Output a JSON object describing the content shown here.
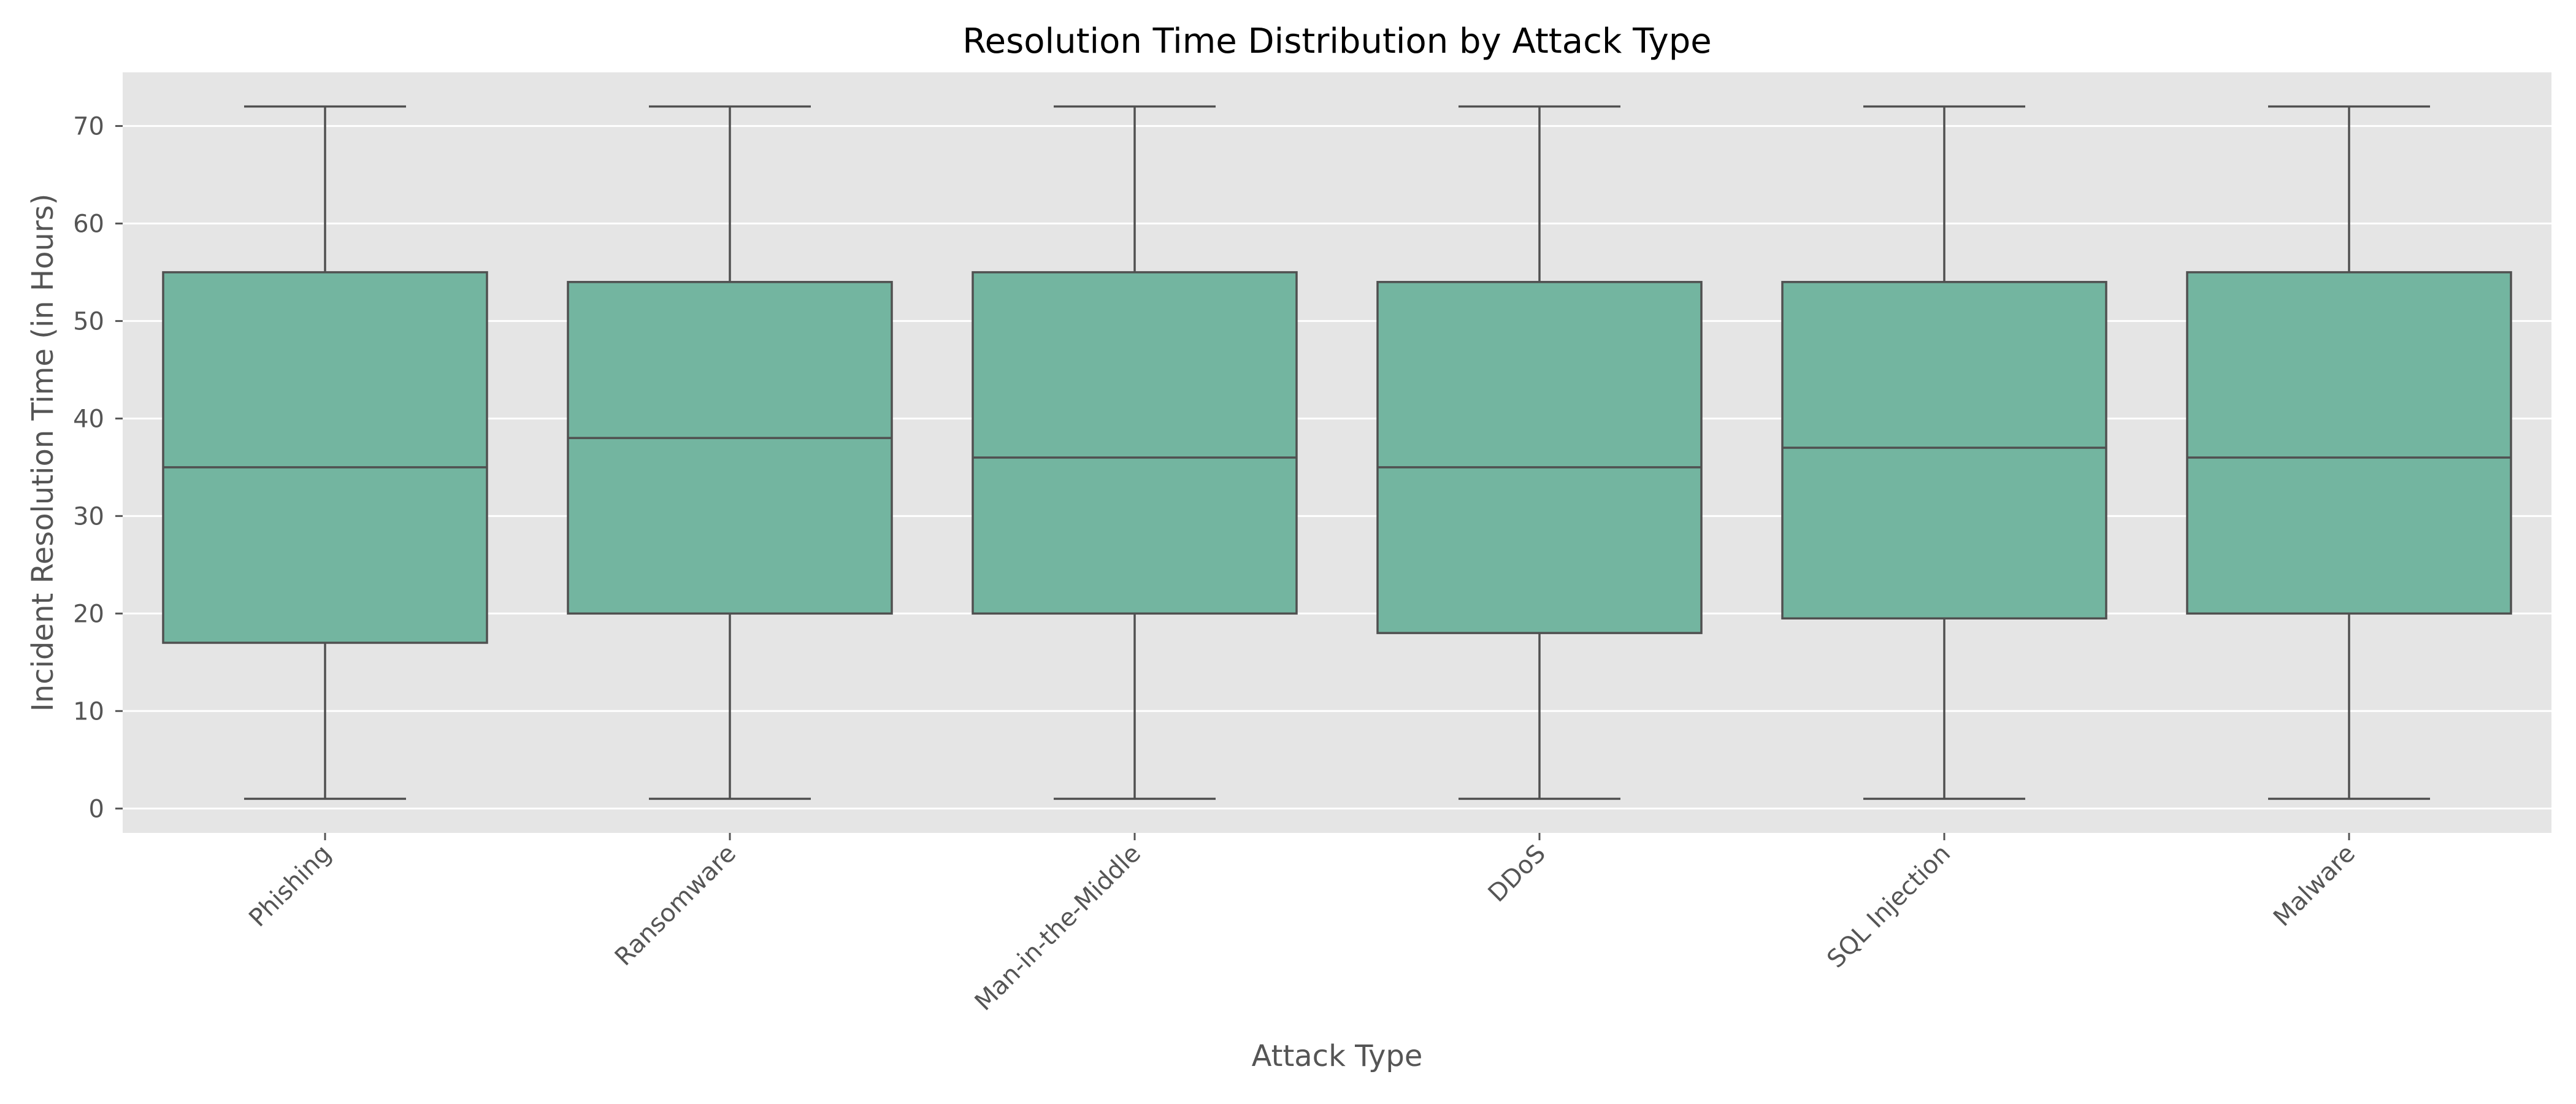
{
  "chart_data": {
    "type": "boxplot",
    "title": "Resolution Time Distribution by Attack Type",
    "xlabel": "Attack Type",
    "ylabel": "Incident Resolution Time (in Hours)",
    "ylim": [
      -2.5,
      75.5
    ],
    "yticks": [
      0,
      10,
      20,
      30,
      40,
      50,
      60,
      70
    ],
    "grid": true,
    "box_color": "#73b5a0",
    "edge_color": "#505050",
    "background": "#e5e5e5",
    "categories": [
      "Phishing",
      "Ransomware",
      "Man-in-the-Middle",
      "DDoS",
      "SQL Injection",
      "Malware"
    ],
    "boxes": [
      {
        "min": 1,
        "q1": 17,
        "median": 35,
        "q3": 55,
        "max": 72
      },
      {
        "min": 1,
        "q1": 20,
        "median": 38,
        "q3": 54,
        "max": 72
      },
      {
        "min": 1,
        "q1": 20,
        "median": 36,
        "q3": 55,
        "max": 72
      },
      {
        "min": 1,
        "q1": 18,
        "median": 35,
        "q3": 54,
        "max": 72
      },
      {
        "min": 1,
        "q1": 19.5,
        "median": 37,
        "q3": 54,
        "max": 72
      },
      {
        "min": 1,
        "q1": 20,
        "median": 36,
        "q3": 55,
        "max": 72
      }
    ]
  }
}
